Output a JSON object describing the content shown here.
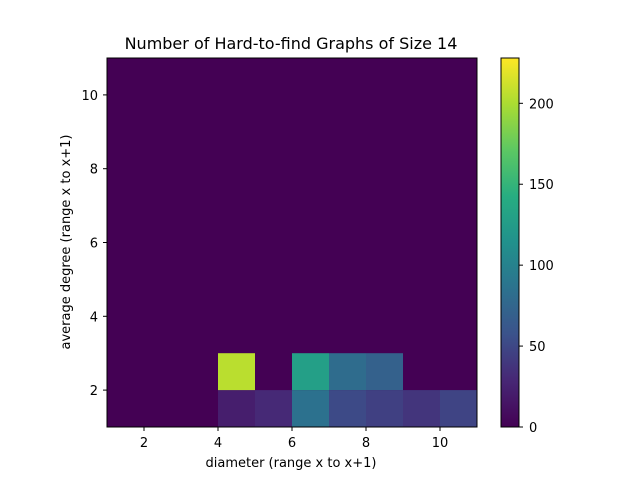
{
  "chart_data": {
    "type": "heatmap",
    "title": "Number of Hard-to-find Graphs of Size 14",
    "xlabel": "diameter (range x to x+1)",
    "ylabel": "average degree (range x to x+1)",
    "xlim": [
      1,
      11
    ],
    "ylim": [
      1,
      11
    ],
    "xticks": [
      2,
      4,
      6,
      8,
      10
    ],
    "yticks": [
      2,
      4,
      6,
      8,
      10
    ],
    "colormap": "viridis",
    "color_range": [
      0,
      228
    ],
    "colorbar_ticks": [
      0,
      50,
      100,
      150,
      200
    ],
    "grid": false,
    "legend": "colorbar-right",
    "cells": [
      {
        "x": 4,
        "y": 1,
        "value": 22
      },
      {
        "x": 5,
        "y": 1,
        "value": 30
      },
      {
        "x": 6,
        "y": 1,
        "value": 85
      },
      {
        "x": 7,
        "y": 1,
        "value": 52
      },
      {
        "x": 8,
        "y": 1,
        "value": 45
      },
      {
        "x": 9,
        "y": 1,
        "value": 38
      },
      {
        "x": 10,
        "y": 1,
        "value": 48
      },
      {
        "x": 4,
        "y": 2,
        "value": 205
      },
      {
        "x": 6,
        "y": 2,
        "value": 128
      },
      {
        "x": 7,
        "y": 2,
        "value": 80
      },
      {
        "x": 8,
        "y": 2,
        "value": 70
      }
    ]
  }
}
